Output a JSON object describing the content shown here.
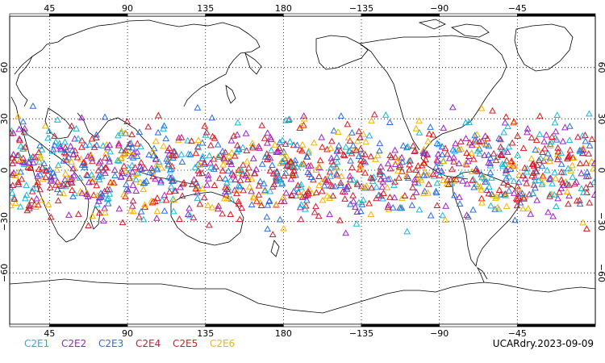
{
  "figure": {
    "dataset_label": "UCARdry.2023-09-09"
  },
  "axes": {
    "lon_ticks": [
      {
        "lon": 45,
        "label": "45"
      },
      {
        "lon": 90,
        "label": "90"
      },
      {
        "lon": 135,
        "label": "135"
      },
      {
        "lon": 180,
        "label": "180"
      },
      {
        "lon": 225,
        "label": "−135"
      },
      {
        "lon": 270,
        "label": "−90"
      },
      {
        "lon": 315,
        "label": "−45"
      }
    ],
    "lat_ticks": [
      {
        "lat": 60,
        "label": "60"
      },
      {
        "lat": 30,
        "label": "30"
      },
      {
        "lat": 0,
        "label": "0"
      },
      {
        "lat": -30,
        "label": "−30"
      },
      {
        "lat": -60,
        "label": "−60"
      }
    ],
    "lon_range": [
      22,
      360
    ],
    "lat_range": [
      -90,
      90
    ],
    "grid": "dotted"
  },
  "legend": [
    {
      "name": "C2E1",
      "color": "#16b7d8"
    },
    {
      "name": "C2E2",
      "color": "#a020c8"
    },
    {
      "name": "C2E3",
      "color": "#2a6fe0"
    },
    {
      "name": "C2E4",
      "color": "#c8203a"
    },
    {
      "name": "C2E5",
      "color": "#e01818"
    },
    {
      "name": "C2E6",
      "color": "#f4b400"
    }
  ],
  "chart_data": {
    "type": "scatter",
    "marker": "open-triangle",
    "x_axis": "longitude",
    "y_axis": "latitude",
    "series": [
      {
        "name": "C2E1",
        "color": "#16b7d8",
        "lat_range": [
          -42,
          42
        ],
        "approx_count": 210
      },
      {
        "name": "C2E2",
        "color": "#a020c8",
        "lat_range": [
          -42,
          42
        ],
        "approx_count": 210
      },
      {
        "name": "C2E3",
        "color": "#2a6fe0",
        "lat_range": [
          -42,
          42
        ],
        "approx_count": 210
      },
      {
        "name": "C2E4",
        "color": "#c8203a",
        "lat_range": [
          -42,
          42
        ],
        "approx_count": 210
      },
      {
        "name": "C2E5",
        "color": "#e01818",
        "lat_range": [
          -42,
          42
        ],
        "approx_count": 210
      },
      {
        "name": "C2E6",
        "color": "#f4b400",
        "lat_range": [
          -42,
          42
        ],
        "approx_count": 210
      }
    ]
  }
}
